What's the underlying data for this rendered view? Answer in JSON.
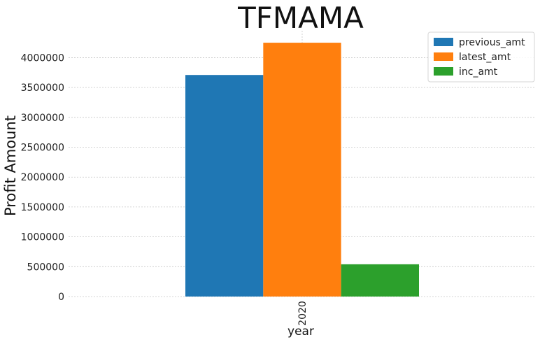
{
  "chart_data": {
    "type": "bar",
    "title": "TFMAMA",
    "xlabel": "year",
    "ylabel": "Profit Amount",
    "categories": [
      "2020"
    ],
    "series": [
      {
        "name": "previous_amt",
        "values": [
          3710000
        ],
        "color": "#1f77b4"
      },
      {
        "name": "latest_amt",
        "values": [
          4250000
        ],
        "color": "#ff7f0e"
      },
      {
        "name": "inc_amt",
        "values": [
          540000
        ],
        "color": "#2ca02c"
      }
    ],
    "ylim": [
      0,
      4450000
    ],
    "yticks": [
      0,
      500000,
      1000000,
      1500000,
      2000000,
      2500000,
      3000000,
      3500000,
      4000000
    ],
    "grid": true,
    "legend_position": "top-right"
  }
}
